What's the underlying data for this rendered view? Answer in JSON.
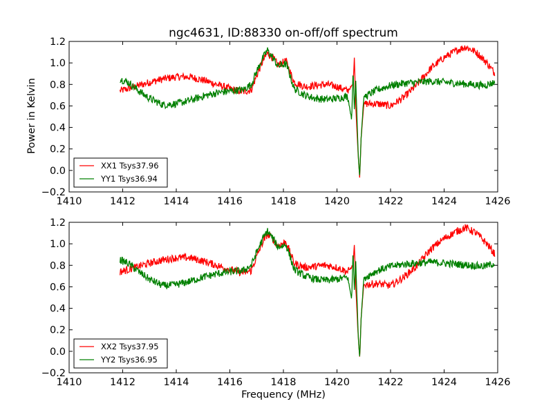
{
  "title": "ngc4631, ID:88330 on-off/off spectrum",
  "colors": {
    "red": "#ff0000",
    "green": "#008000",
    "axes": "#000000",
    "background": "#ffffff"
  },
  "chart_data": [
    {
      "type": "line",
      "panel": "top",
      "title": "ngc4631, ID:88330 on-off/off spectrum",
      "xlabel": "",
      "ylabel": "Power in Kelvin",
      "xlim": [
        1410,
        1426
      ],
      "ylim": [
        -0.2,
        1.2
      ],
      "xticks": [
        1410,
        1412,
        1414,
        1416,
        1418,
        1420,
        1422,
        1424,
        1426
      ],
      "yticks": [
        -0.2,
        0.0,
        0.2,
        0.4,
        0.6,
        0.8,
        1.0,
        1.2
      ],
      "xtick_labels": [
        "1410",
        "1412",
        "1414",
        "1416",
        "1418",
        "1420",
        "1422",
        "1424",
        "1426"
      ],
      "ytick_labels": [
        "−0.2",
        "0.0",
        "0.2",
        "0.4",
        "0.6",
        "0.8",
        "1.0",
        "1.2"
      ],
      "grid": false,
      "legend_position": "lower-left",
      "series": [
        {
          "name": "XX1 Tsys37.96",
          "color": "#ff0000",
          "points": [
            [
              1411.9,
              0.74
            ],
            [
              1412.2,
              0.76
            ],
            [
              1412.6,
              0.79
            ],
            [
              1413.0,
              0.82
            ],
            [
              1413.5,
              0.85
            ],
            [
              1414.0,
              0.87
            ],
            [
              1414.5,
              0.87
            ],
            [
              1415.0,
              0.84
            ],
            [
              1415.5,
              0.8
            ],
            [
              1416.0,
              0.76
            ],
            [
              1416.5,
              0.73
            ],
            [
              1416.8,
              0.75
            ],
            [
              1417.0,
              0.88
            ],
            [
              1417.2,
              1.0
            ],
            [
              1417.4,
              1.09
            ],
            [
              1417.6,
              1.05
            ],
            [
              1417.8,
              0.98
            ],
            [
              1418.1,
              1.02
            ],
            [
              1418.2,
              0.95
            ],
            [
              1418.4,
              0.82
            ],
            [
              1418.8,
              0.78
            ],
            [
              1419.2,
              0.79
            ],
            [
              1419.6,
              0.8
            ],
            [
              1420.0,
              0.78
            ],
            [
              1420.4,
              0.74
            ],
            [
              1420.6,
              0.8
            ],
            [
              1420.65,
              1.05
            ],
            [
              1420.7,
              0.6
            ],
            [
              1420.8,
              0.1
            ],
            [
              1420.85,
              -0.07
            ],
            [
              1420.9,
              0.3
            ],
            [
              1421.0,
              0.62
            ],
            [
              1421.5,
              0.62
            ],
            [
              1422.0,
              0.6
            ],
            [
              1422.5,
              0.68
            ],
            [
              1423.0,
              0.8
            ],
            [
              1423.5,
              0.95
            ],
            [
              1424.0,
              1.05
            ],
            [
              1424.5,
              1.12
            ],
            [
              1424.8,
              1.15
            ],
            [
              1425.2,
              1.1
            ],
            [
              1425.6,
              1.0
            ],
            [
              1425.9,
              0.9
            ]
          ]
        },
        {
          "name": "YY1 Tsys36.94",
          "color": "#008000",
          "points": [
            [
              1411.9,
              0.85
            ],
            [
              1412.2,
              0.82
            ],
            [
              1412.6,
              0.74
            ],
            [
              1413.0,
              0.67
            ],
            [
              1413.5,
              0.61
            ],
            [
              1414.0,
              0.62
            ],
            [
              1414.5,
              0.65
            ],
            [
              1415.0,
              0.69
            ],
            [
              1415.5,
              0.72
            ],
            [
              1416.0,
              0.74
            ],
            [
              1416.5,
              0.75
            ],
            [
              1416.8,
              0.8
            ],
            [
              1417.0,
              0.92
            ],
            [
              1417.2,
              1.03
            ],
            [
              1417.4,
              1.12
            ],
            [
              1417.6,
              1.05
            ],
            [
              1417.8,
              0.97
            ],
            [
              1418.1,
              0.99
            ],
            [
              1418.2,
              0.92
            ],
            [
              1418.4,
              0.76
            ],
            [
              1418.8,
              0.7
            ],
            [
              1419.2,
              0.67
            ],
            [
              1419.6,
              0.66
            ],
            [
              1420.0,
              0.67
            ],
            [
              1420.4,
              0.69
            ],
            [
              1420.55,
              0.47
            ],
            [
              1420.6,
              0.95
            ],
            [
              1420.65,
              0.55
            ],
            [
              1420.7,
              0.85
            ],
            [
              1420.8,
              0.1
            ],
            [
              1420.85,
              -0.05
            ],
            [
              1420.9,
              0.3
            ],
            [
              1421.0,
              0.68
            ],
            [
              1421.5,
              0.75
            ],
            [
              1422.0,
              0.79
            ],
            [
              1422.5,
              0.81
            ],
            [
              1423.0,
              0.82
            ],
            [
              1423.5,
              0.83
            ],
            [
              1424.0,
              0.82
            ],
            [
              1424.5,
              0.81
            ],
            [
              1425.0,
              0.8
            ],
            [
              1425.5,
              0.79
            ],
            [
              1425.9,
              0.82
            ]
          ]
        }
      ]
    },
    {
      "type": "line",
      "panel": "bottom",
      "title": "",
      "xlabel": "Frequency (MHz)",
      "ylabel": "",
      "xlim": [
        1410,
        1426
      ],
      "ylim": [
        -0.2,
        1.2
      ],
      "xticks": [
        1410,
        1412,
        1414,
        1416,
        1418,
        1420,
        1422,
        1424,
        1426
      ],
      "yticks": [
        -0.2,
        0.0,
        0.2,
        0.4,
        0.6,
        0.8,
        1.0,
        1.2
      ],
      "xtick_labels": [
        "1410",
        "1412",
        "1414",
        "1416",
        "1418",
        "1420",
        "1422",
        "1424",
        "1426"
      ],
      "ytick_labels": [
        "−0.2",
        "0.0",
        "0.2",
        "0.4",
        "0.6",
        "0.8",
        "1.0",
        "1.2"
      ],
      "grid": false,
      "legend_position": "lower-left",
      "series": [
        {
          "name": "XX2 Tsys37.95",
          "color": "#ff0000",
          "points": [
            [
              1411.9,
              0.74
            ],
            [
              1412.2,
              0.76
            ],
            [
              1412.6,
              0.79
            ],
            [
              1413.0,
              0.82
            ],
            [
              1413.5,
              0.85
            ],
            [
              1414.0,
              0.87
            ],
            [
              1414.5,
              0.87
            ],
            [
              1415.0,
              0.84
            ],
            [
              1415.5,
              0.8
            ],
            [
              1416.0,
              0.76
            ],
            [
              1416.5,
              0.73
            ],
            [
              1416.8,
              0.75
            ],
            [
              1417.0,
              0.88
            ],
            [
              1417.2,
              1.0
            ],
            [
              1417.4,
              1.09
            ],
            [
              1417.6,
              1.05
            ],
            [
              1417.8,
              0.98
            ],
            [
              1418.1,
              1.02
            ],
            [
              1418.2,
              0.95
            ],
            [
              1418.4,
              0.82
            ],
            [
              1418.8,
              0.78
            ],
            [
              1419.2,
              0.79
            ],
            [
              1419.6,
              0.8
            ],
            [
              1420.0,
              0.78
            ],
            [
              1420.4,
              0.74
            ],
            [
              1420.6,
              0.8
            ],
            [
              1420.65,
              1.0
            ],
            [
              1420.7,
              0.6
            ],
            [
              1420.8,
              0.1
            ],
            [
              1420.85,
              -0.07
            ],
            [
              1420.9,
              0.3
            ],
            [
              1421.0,
              0.62
            ],
            [
              1421.5,
              0.63
            ],
            [
              1422.0,
              0.61
            ],
            [
              1422.5,
              0.69
            ],
            [
              1423.0,
              0.8
            ],
            [
              1423.5,
              0.95
            ],
            [
              1424.0,
              1.05
            ],
            [
              1424.5,
              1.12
            ],
            [
              1424.8,
              1.15
            ],
            [
              1425.2,
              1.1
            ],
            [
              1425.6,
              1.0
            ],
            [
              1425.9,
              0.9
            ]
          ]
        },
        {
          "name": "YY2 Tsys36.95",
          "color": "#008000",
          "points": [
            [
              1411.9,
              0.85
            ],
            [
              1412.2,
              0.82
            ],
            [
              1412.6,
              0.74
            ],
            [
              1413.0,
              0.67
            ],
            [
              1413.5,
              0.61
            ],
            [
              1414.0,
              0.62
            ],
            [
              1414.5,
              0.65
            ],
            [
              1415.0,
              0.69
            ],
            [
              1415.5,
              0.72
            ],
            [
              1416.0,
              0.74
            ],
            [
              1416.5,
              0.75
            ],
            [
              1416.8,
              0.8
            ],
            [
              1417.0,
              0.92
            ],
            [
              1417.2,
              1.03
            ],
            [
              1417.4,
              1.12
            ],
            [
              1417.6,
              1.05
            ],
            [
              1417.8,
              0.97
            ],
            [
              1418.1,
              0.99
            ],
            [
              1418.2,
              0.92
            ],
            [
              1418.4,
              0.76
            ],
            [
              1418.8,
              0.7
            ],
            [
              1419.2,
              0.67
            ],
            [
              1419.6,
              0.66
            ],
            [
              1420.0,
              0.67
            ],
            [
              1420.4,
              0.69
            ],
            [
              1420.55,
              0.48
            ],
            [
              1420.6,
              0.95
            ],
            [
              1420.65,
              0.55
            ],
            [
              1420.7,
              0.85
            ],
            [
              1420.8,
              0.1
            ],
            [
              1420.85,
              -0.05
            ],
            [
              1420.9,
              0.3
            ],
            [
              1421.0,
              0.68
            ],
            [
              1421.5,
              0.75
            ],
            [
              1422.0,
              0.79
            ],
            [
              1422.5,
              0.81
            ],
            [
              1423.0,
              0.82
            ],
            [
              1423.5,
              0.83
            ],
            [
              1424.0,
              0.82
            ],
            [
              1424.5,
              0.81
            ],
            [
              1425.0,
              0.8
            ],
            [
              1425.5,
              0.79
            ],
            [
              1425.9,
              0.82
            ]
          ]
        }
      ]
    }
  ]
}
